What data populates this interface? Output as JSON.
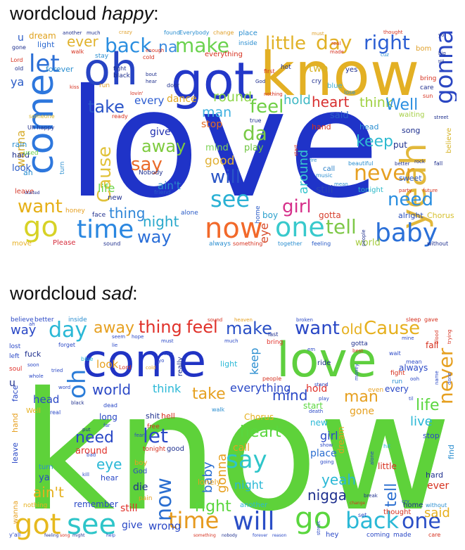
{
  "happy": {
    "title_prefix": "wordcloud ",
    "title_emph": "happy",
    "title_suffix": ":",
    "words": {
      "love": "love",
      "know": "know",
      "got": "got",
      "oh": "oh",
      "come": "come",
      "yeah": "yeah",
      "gonna": "gonna",
      "baby": "baby",
      "now": "now",
      "one": "one",
      "time": "time",
      "go": "go",
      "way": "way",
      "make": "make",
      "little": "little",
      "day": "day",
      "right": "right",
      "back": "back",
      "ever": "ever",
      "let": "let",
      "na": "na",
      "dream": "dream",
      "light": "light",
      "say": "say",
      "away": "away",
      "cause": "Cause",
      "take": "take",
      "feel": "feel",
      "heart": "heart",
      "think": "think",
      "well": "Well",
      "man": "man",
      "round": "round",
      "da": "da",
      "play": "play",
      "keep": "keep",
      "never": "never",
      "need": "need",
      "girl": "girl",
      "see": "see",
      "will": "will",
      "tell": "tell",
      "want": "want",
      "thing": "thing",
      "night": "night",
      "life": "life",
      "aint": "ain't",
      "good": "good",
      "mind": "mind",
      "give": "give",
      "hold": "hold",
      "every": "every",
      "dance": "dance",
      "stop": "stop",
      "said": "said",
      "world": "world",
      "still": "still",
      "put": "put",
      "alright": "alright",
      "chorus": "Chorus",
      "gotta": "gotta",
      "around": "around",
      "please": "Please",
      "move": "move",
      "wanna": "wanna",
      "look": "look",
      "rain": "rain",
      "hard": "hard",
      "leave": "leave",
      "forever": "forever",
      "song": "song",
      "waiting": "waiting",
      "sweet": "sweet",
      "tonight": "tonight",
      "call": "call",
      "believe": "believe",
      "everything": "everything",
      "two": "two",
      "blue": "blue",
      "home": "home",
      "boy": "boy",
      "eye": "eye",
      "head": "head",
      "hand": "hand",
      "nobody": "Nobody",
      "new": "new",
      "honey": "honey",
      "face": "face",
      "alone": "alone",
      "always": "always",
      "sound": "sound",
      "feeling": "feeling",
      "together": "together",
      "without": "without",
      "something": "something",
      "friend": "friend",
      "ya": "ya",
      "u": "u",
      "gone": "gone",
      "lord": "Lord",
      "old": "old",
      "walk": "walk",
      "stay": "stay",
      "cold": "cold",
      "inside": "inside",
      "place": "place",
      "found": "found",
      "everybody": "Everybody",
      "change": "change",
      "crazy": "crazy",
      "another": "another",
      "much": "much",
      "must": "must",
      "thought": "thought",
      "bom": "bom",
      "fight": "fight",
      "black": "black",
      "bring": "bring",
      "care": "care",
      "sun": "sun",
      "yes": "yes",
      "hot": "hot",
      "cry": "cry",
      "first": "first",
      "lose": "lose",
      "door": "door",
      "lovin": "lovin'",
      "ready": "ready",
      "someone": "someone",
      "uh_happy": "Uh happy",
      "used": "used",
      "ah": "ah",
      "turn": "turn",
      "fall": "fall",
      "music": "music",
      "mean": "mean",
      "party": "party",
      "future": "future",
      "fire": "fire",
      "beautiful": "beautiful",
      "better": "better",
      "rock": "rock",
      "true": "true",
      "people": "people",
      "nothing": "nothing",
      "bout": "bout",
      "hear": "hear",
      "god": "God",
      "real": "real",
      "made": "made",
      "started": "started",
      "enough": "enough",
      "run": "run",
      "kiss": "kiss",
      "start": "start",
      "street": "street",
      "big": "big",
      "till": "till",
      "yo": "yo",
      "cuz": "cuz"
    }
  },
  "sad": {
    "title_prefix": "wordcloud ",
    "title_emph": "sad",
    "title_suffix": ":",
    "words": {
      "know": "know",
      "come": "come",
      "love": "love",
      "oh": "oh",
      "got": "got",
      "see": "see",
      "time": "time",
      "will": "will",
      "go": "go",
      "back": "back",
      "one": "one",
      "say": "say",
      "now": "now",
      "day": "day",
      "away": "away",
      "thing": "thing",
      "feel": "feel",
      "make": "make",
      "want": "want",
      "old": "old",
      "cause": "Cause",
      "never": "never",
      "look": "look",
      "way": "way",
      "world": "world",
      "think": "think",
      "take": "take",
      "everything": "everything",
      "mind": "mind",
      "hold": "hold",
      "man": "man",
      "life": "life",
      "live": "live",
      "need": "need",
      "let": "let",
      "eye": "eye",
      "heart": "heart",
      "night": "night",
      "baby": "baby",
      "gonna": "gonna",
      "yeah": "yeah",
      "girl": "girl",
      "nigga": "nigga",
      "tell": "tell",
      "said": "said",
      "ever": "ever",
      "right": "right",
      "aint": "ain't",
      "remember": "remember",
      "still": "still",
      "give": "give",
      "wrong": "wrong",
      "head": "head",
      "every": "every",
      "always": "always",
      "gone": "gone",
      "chorus": "Chorus",
      "start": "start",
      "place": "place",
      "around": "around",
      "call": "call",
      "lonely": "lonely",
      "die": "die",
      "new": "new",
      "little": "little",
      "hard": "hard",
      "fall": "fall",
      "soul": "soul",
      "left": "left",
      "lost": "lost",
      "fuck": "fuck",
      "believe": "believe",
      "better": "better",
      "inside": "inside",
      "sleep": "sleep",
      "gave": "gave",
      "dream": "dream",
      "stop": "stop",
      "find": "find",
      "well": "Well",
      "wanna": "wanna",
      "leave": "leave",
      "hand": "hand",
      "face": "face",
      "ya": "ya",
      "turn": "turn",
      "hear": "hear",
      "light": "light",
      "keep": "keep",
      "ride": "ride",
      "bring": "bring",
      "last": "last",
      "gotta": "gotta",
      "fight": "fight",
      "run": "run",
      "shit": "shit",
      "hell": "hell",
      "free": "free",
      "god": "God",
      "tonight": "tonight",
      "good": "good",
      "boy": "boy",
      "pain": "pain",
      "another": "another",
      "thought": "thought",
      "home": "home",
      "without": "without",
      "nothing": "nothing",
      "feeling": "feeling",
      "help": "help",
      "song": "song",
      "might": "might",
      "something": "something",
      "nobody": "nobody",
      "forever": "forever",
      "reason": "reason",
      "coming": "coming",
      "made": "made",
      "care": "care",
      "hey": "hey",
      "really": "really",
      "u": "u",
      "walk": "walk",
      "blue": "blue",
      "people": "people",
      "real": "real",
      "even": "even",
      "sound": "sound",
      "heaven": "heaven",
      "broken": "broken",
      "black": "black",
      "much": "much",
      "must": "must",
      "mean": "mean",
      "two": "two",
      "break": "break",
      "change": "change",
      "street": "street",
      "hit": "hit",
      "death": "death",
      "money": "money",
      "lord": "Lord",
      "cold": "cold",
      "dead": "dead",
      "seem": "seem",
      "hope": "hope",
      "yo": "yo",
      "cry": "cry",
      "alone": "alone",
      "play": "play",
      "stand": "stand",
      "show": "show",
      "going": "going",
      "fear": "fear",
      "put": "put",
      "long": "long",
      "far": "far",
      "best": "best",
      "forget": "forget",
      "wait": "wait",
      "ooh": "ooh",
      "em": "em",
      "tried": "tried",
      "whole": "whole",
      "mine": "mine",
      "lie": "lie",
      "blood": "blood",
      "trying": "trying",
      "word": "word",
      "yall": "y'all",
      "kill": "kill",
      "bad": "bad",
      "ah": "ah",
      "name": "name",
      "til": "til",
      "done": "done",
      "soon": "soon",
      "ya2": "ya",
      "ooh2": "oh",
      "set": "set"
    }
  }
}
